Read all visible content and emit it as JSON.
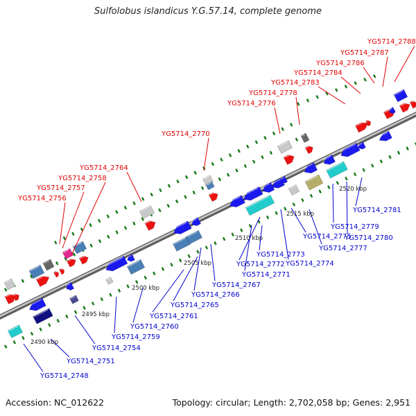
{
  "title": "Sulfolobus islandicus Y.G.57.14, complete genome",
  "footer": {
    "accession": "Accession: NC_012622",
    "summary": "Topology: circular; Length: 2,702,058 bp; Genes: 2,951"
  },
  "colors": {
    "forward_label": "#e00000",
    "reverse_label": "#0000cc",
    "strand_dots": "#1a7a1a",
    "backbone": "#8c8c8c"
  },
  "ticks": [
    {
      "label": "2490 kbp"
    },
    {
      "label": "2495 kbp"
    },
    {
      "label": "2500 kbp"
    },
    {
      "label": "2505 kbp"
    },
    {
      "label": "2510 kbp"
    },
    {
      "label": "2515 kbp"
    },
    {
      "label": "2520 kbp"
    }
  ],
  "forward_labels": [
    "YG5714_2756",
    "YG5714_2757",
    "YG5714_2758",
    "YG5714_2764",
    "YG5714_2770",
    "YG5714_2776",
    "YG5714_2778",
    "YG5714_2783",
    "YG5714_2784",
    "YG5714_2786",
    "YG5714_2787",
    "YG5714_2788"
  ],
  "reverse_labels": [
    "YG5714_2748",
    "YG5714_2751",
    "YG5714_2754",
    "YG5714_2759",
    "YG5714_2760",
    "YG5714_2761",
    "YG5714_2765",
    "YG5714_2766",
    "YG5714_2767",
    "YG5714_2771",
    "YG5714_2772",
    "YG5714_2773",
    "YG5714_2774",
    "YG5714_2775",
    "YG5714_2777",
    "YG5714_2779",
    "YG5714_2780",
    "YG5714_2781"
  ]
}
